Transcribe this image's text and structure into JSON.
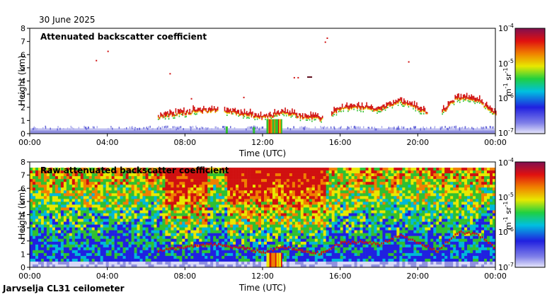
{
  "header": {
    "date": "30 June 2025"
  },
  "footer": {
    "station": "Jarvselja CL31 ceilometer"
  },
  "colors": {
    "low": "#c8c8f0",
    "blue": "#2020e0",
    "cyan": "#00b8d8",
    "green": "#30c030",
    "yellow": "#e8e800",
    "orange": "#f08000",
    "red": "#d01010",
    "darkred": "#601020"
  },
  "chart_data": [
    {
      "type": "heatmap",
      "title": "Attenuated backscatter coefficient",
      "xlabel": "Time (UTC)",
      "ylabel": "Height (km)",
      "x_ticks": [
        "00:00",
        "04:00",
        "08:00",
        "12:00",
        "16:00",
        "20:00",
        "00:00"
      ],
      "x_range_hours": [
        0,
        24
      ],
      "ylim": [
        0,
        8
      ],
      "y_ticks": [
        0,
        1,
        2,
        3,
        4,
        5,
        6,
        7,
        8
      ],
      "colorbar": {
        "unit_prefix": "m",
        "unit_exp1": "-1",
        "unit_mid": " sr",
        "unit_exp2": "-1",
        "ticks": [
          {
            "base": "10",
            "exp": "-4"
          },
          {
            "base": "10",
            "exp": "-5"
          },
          {
            "base": "10",
            "exp": "-6"
          },
          {
            "base": "10",
            "exp": "-7"
          }
        ]
      },
      "cloud_layer": {
        "hours": [
          6.6,
          8,
          9.5,
          11,
          12,
          13,
          14,
          15,
          16,
          17,
          18,
          19,
          20,
          21,
          22,
          23,
          24
        ],
        "base_km": [
          1.2,
          1.5,
          1.7,
          1.4,
          1.1,
          1.5,
          1.2,
          1.0,
          1.8,
          1.9,
          1.7,
          2.4,
          1.8,
          1.2,
          2.6,
          2.5,
          1.4
        ]
      },
      "surface_layer_top_km": 0.4
    },
    {
      "type": "heatmap",
      "title": "Raw attenuated backscatter coefficient",
      "xlabel": "Time (UTC)",
      "ylabel": "Height (km)",
      "x_ticks": [
        "00:00",
        "04:00",
        "08:00",
        "12:00",
        "16:00",
        "20:00",
        "00:00"
      ],
      "x_range_hours": [
        0,
        24
      ],
      "ylim": [
        0,
        8
      ],
      "y_ticks": [
        0,
        1,
        2,
        3,
        4,
        5,
        6,
        7,
        8
      ],
      "colorbar": {
        "unit_prefix": "m",
        "unit_exp1": "-1",
        "unit_mid": " sr",
        "unit_exp2": "-1",
        "ticks": [
          {
            "base": "10",
            "exp": "-4"
          },
          {
            "base": "10",
            "exp": "-5"
          },
          {
            "base": "10",
            "exp": "-6"
          },
          {
            "base": "10",
            "exp": "-7"
          }
        ]
      },
      "noise_intense_hours": [
        [
          7.0,
          9.2
        ],
        [
          10.2,
          15.2
        ]
      ]
    }
  ]
}
